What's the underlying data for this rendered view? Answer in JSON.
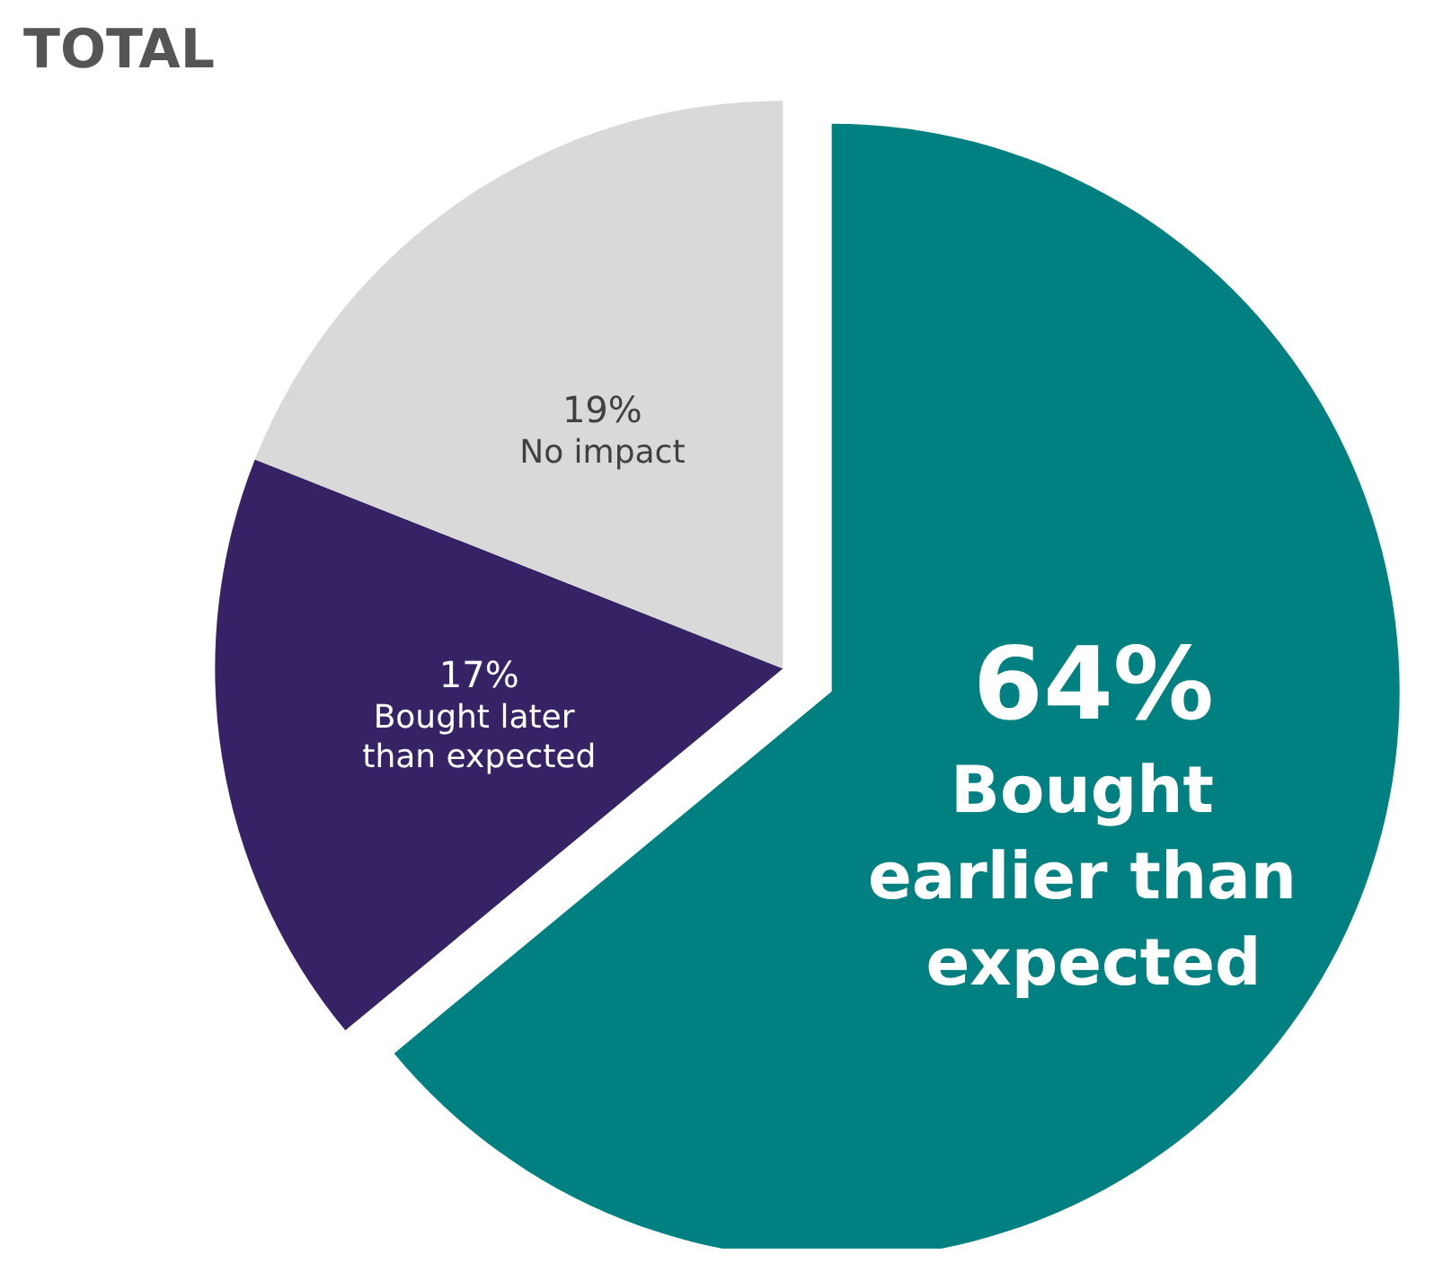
{
  "chart_data": {
    "type": "pie",
    "title": "TOTAL",
    "categories": [
      "Bought earlier than expected",
      "Bought later than expected",
      "No impact"
    ],
    "values": [
      64,
      17,
      19
    ],
    "value_labels": [
      "64%",
      "17%",
      "19%"
    ],
    "colors": [
      "#008080",
      "#362366",
      "#d9d9d9"
    ],
    "data_labels": true,
    "legend": false
  }
}
